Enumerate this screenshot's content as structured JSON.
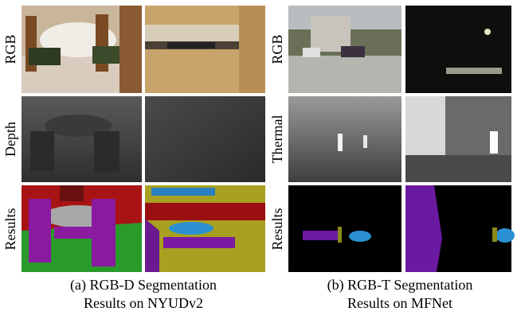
{
  "panels": [
    {
      "rows": [
        "RGB",
        "Depth",
        "Results"
      ],
      "caption": [
        "(a) RGB-D Segmentation",
        "Results on NYUDv2"
      ]
    },
    {
      "rows": [
        "RGB",
        "Thermal",
        "Results"
      ],
      "caption": [
        "(b) RGB-T Segmentation",
        "Results on MFNet"
      ]
    }
  ]
}
